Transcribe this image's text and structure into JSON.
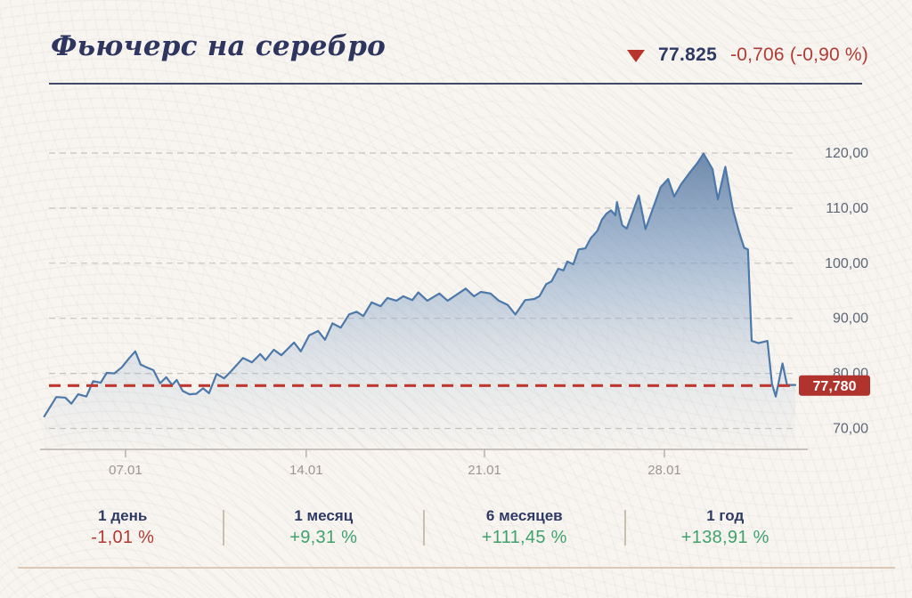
{
  "header": {
    "title": "Фьючерс на серебро",
    "direction_icon": "down-triangle-icon",
    "price": "77.825",
    "change": "-0,706 (-0,90 %)"
  },
  "colors": {
    "title_navy": "#2e355f",
    "negative_red": "#b23a34",
    "positive_green": "#3fa26e",
    "line_blue": "#4d79aa",
    "last_price_red": "#bf372f",
    "badge_red": "#b0332d"
  },
  "chart_data": {
    "type": "area",
    "title": "Фьючерс на серебро",
    "xlabel": "",
    "ylabel": "",
    "grid": "horizontal-dashed",
    "ylim": [
      66,
      124
    ],
    "y_ticks": [
      {
        "label": "70,00",
        "value": 70
      },
      {
        "label": "80,00",
        "value": 80
      },
      {
        "label": "90,00",
        "value": 90
      },
      {
        "label": "100,00",
        "value": 100
      },
      {
        "label": "110,00",
        "value": 110
      },
      {
        "label": "120,00",
        "value": 120
      }
    ],
    "x_ticks": [
      {
        "label": "07.01",
        "t": 0.11
      },
      {
        "label": "14.01",
        "t": 0.35
      },
      {
        "label": "21.01",
        "t": 0.587
      },
      {
        "label": "28.01",
        "t": 0.826
      }
    ],
    "last_price_line": {
      "value": 77.78,
      "label": "77,780"
    },
    "series": [
      {
        "name": "price",
        "x_frac": [
          0.002,
          0.018,
          0.03,
          0.038,
          0.047,
          0.058,
          0.067,
          0.077,
          0.085,
          0.095,
          0.105,
          0.115,
          0.123,
          0.13,
          0.138,
          0.147,
          0.156,
          0.164,
          0.172,
          0.178,
          0.186,
          0.195,
          0.204,
          0.213,
          0.221,
          0.231,
          0.241,
          0.251,
          0.266,
          0.278,
          0.289,
          0.296,
          0.307,
          0.317,
          0.334,
          0.343,
          0.354,
          0.366,
          0.375,
          0.385,
          0.396,
          0.407,
          0.417,
          0.426,
          0.437,
          0.449,
          0.458,
          0.47,
          0.479,
          0.491,
          0.499,
          0.511,
          0.527,
          0.538,
          0.549,
          0.562,
          0.573,
          0.582,
          0.595,
          0.606,
          0.618,
          0.628,
          0.641,
          0.653,
          0.66,
          0.669,
          0.676,
          0.685,
          0.692,
          0.697,
          0.705,
          0.712,
          0.721,
          0.728,
          0.737,
          0.743,
          0.749,
          0.755,
          0.761,
          0.763,
          0.77,
          0.776,
          0.792,
          0.801,
          0.821,
          0.831,
          0.839,
          0.848,
          0.86,
          0.87,
          0.878,
          0.89,
          0.897,
          0.907,
          0.917,
          0.925,
          0.932,
          0.937,
          0.942,
          0.951,
          0.963,
          0.969,
          0.974,
          0.983,
          0.989,
          1.0
        ],
        "values": [
          72.2,
          75.7,
          75.6,
          74.5,
          76.2,
          75.8,
          78.6,
          78.3,
          80.1,
          80.0,
          81.1,
          82.8,
          84.0,
          81.6,
          81.1,
          80.6,
          78.2,
          79.3,
          77.9,
          78.8,
          76.8,
          76.2,
          76.3,
          77.3,
          76.4,
          79.9,
          79.1,
          80.5,
          82.8,
          82.0,
          83.5,
          82.4,
          84.3,
          83.3,
          85.6,
          84.0,
          86.9,
          87.7,
          86.1,
          89.1,
          88.3,
          90.7,
          91.2,
          90.4,
          92.9,
          92.2,
          93.7,
          93.2,
          94.0,
          93.3,
          94.7,
          93.2,
          94.5,
          93.2,
          94.2,
          95.4,
          94.0,
          94.8,
          94.5,
          93.2,
          92.4,
          90.7,
          93.3,
          93.5,
          94.0,
          96.2,
          96.7,
          99.0,
          98.7,
          100.3,
          99.8,
          102.5,
          102.7,
          104.5,
          105.9,
          107.9,
          109.0,
          109.6,
          108.7,
          111.1,
          106.9,
          106.3,
          112.3,
          106.2,
          113.8,
          115.3,
          112.1,
          114.3,
          116.5,
          118.2,
          119.9,
          117.1,
          111.6,
          117.5,
          109.8,
          105.8,
          102.8,
          102.5,
          85.9,
          85.5,
          85.9,
          78.1,
          75.8,
          81.8,
          77.9,
          77.9
        ]
      }
    ]
  },
  "stats": [
    {
      "label": "1 день",
      "value": "-1,01 %",
      "trend": "down"
    },
    {
      "label": "1 месяц",
      "value": "+9,31 %",
      "trend": "up"
    },
    {
      "label": "6 месяцев",
      "value": "+111,45 %",
      "trend": "up"
    },
    {
      "label": "1 год",
      "value": "+138,91 %",
      "trend": "up"
    }
  ]
}
